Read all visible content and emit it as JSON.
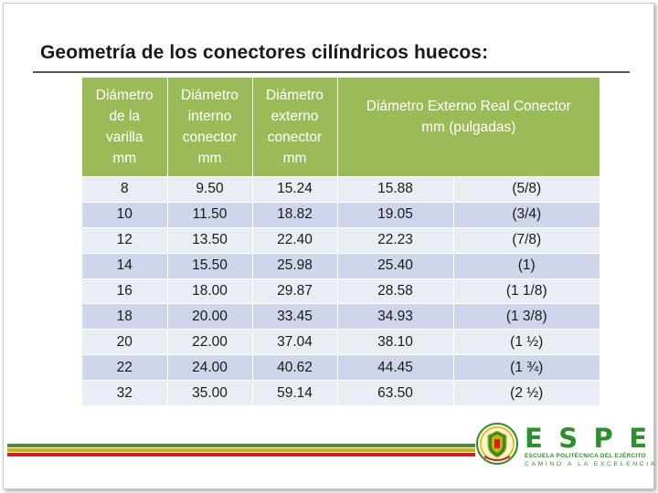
{
  "slide": {
    "title": "Geometría de los conectores cilíndricos huecos:"
  },
  "table": {
    "headers": [
      [
        "Diámetro",
        "de la",
        "varilla",
        "mm"
      ],
      [
        "Diámetro",
        "interno",
        "conector",
        "mm"
      ],
      [
        "Diámetro",
        "externo",
        "conector",
        "mm"
      ],
      [
        "Diámetro Externo Real Conector",
        "mm  (pulgadas)"
      ]
    ],
    "rows": [
      [
        "8",
        "9.50",
        "15.24",
        "15.88",
        "(5/8)"
      ],
      [
        "10",
        "11.50",
        "18.82",
        "19.05",
        "(3/4)"
      ],
      [
        "12",
        "13.50",
        "22.40",
        "22.23",
        "(7/8)"
      ],
      [
        "14",
        "15.50",
        "25.98",
        "25.40",
        "(1)"
      ],
      [
        "16",
        "18.00",
        "29.87",
        "28.58",
        "(1 1/8)"
      ],
      [
        "18",
        "20.00",
        "33.45",
        "34.93",
        "(1 3/8)"
      ],
      [
        "20",
        "22.00",
        "37.04",
        "38.10",
        "(1 ½)"
      ],
      [
        "22",
        "24.00",
        "40.62",
        "44.45",
        "(1 ¾)"
      ],
      [
        "32",
        "35.00",
        "59.14",
        "63.50",
        "(2 ½)"
      ]
    ]
  },
  "branding": {
    "letters": [
      "E",
      "S",
      "P",
      "E"
    ],
    "line1": "ESCUELA POLITÉCNICA DEL EJÉRCITO",
    "line2": "CAMINO A LA EXCELENCIA",
    "colors": {
      "green": "#2f8f2f",
      "yellow": "#d4b000",
      "red": "#c8242a",
      "header_green": "#9bbb59"
    },
    "emblem_icon": "espe-crest-icon"
  }
}
